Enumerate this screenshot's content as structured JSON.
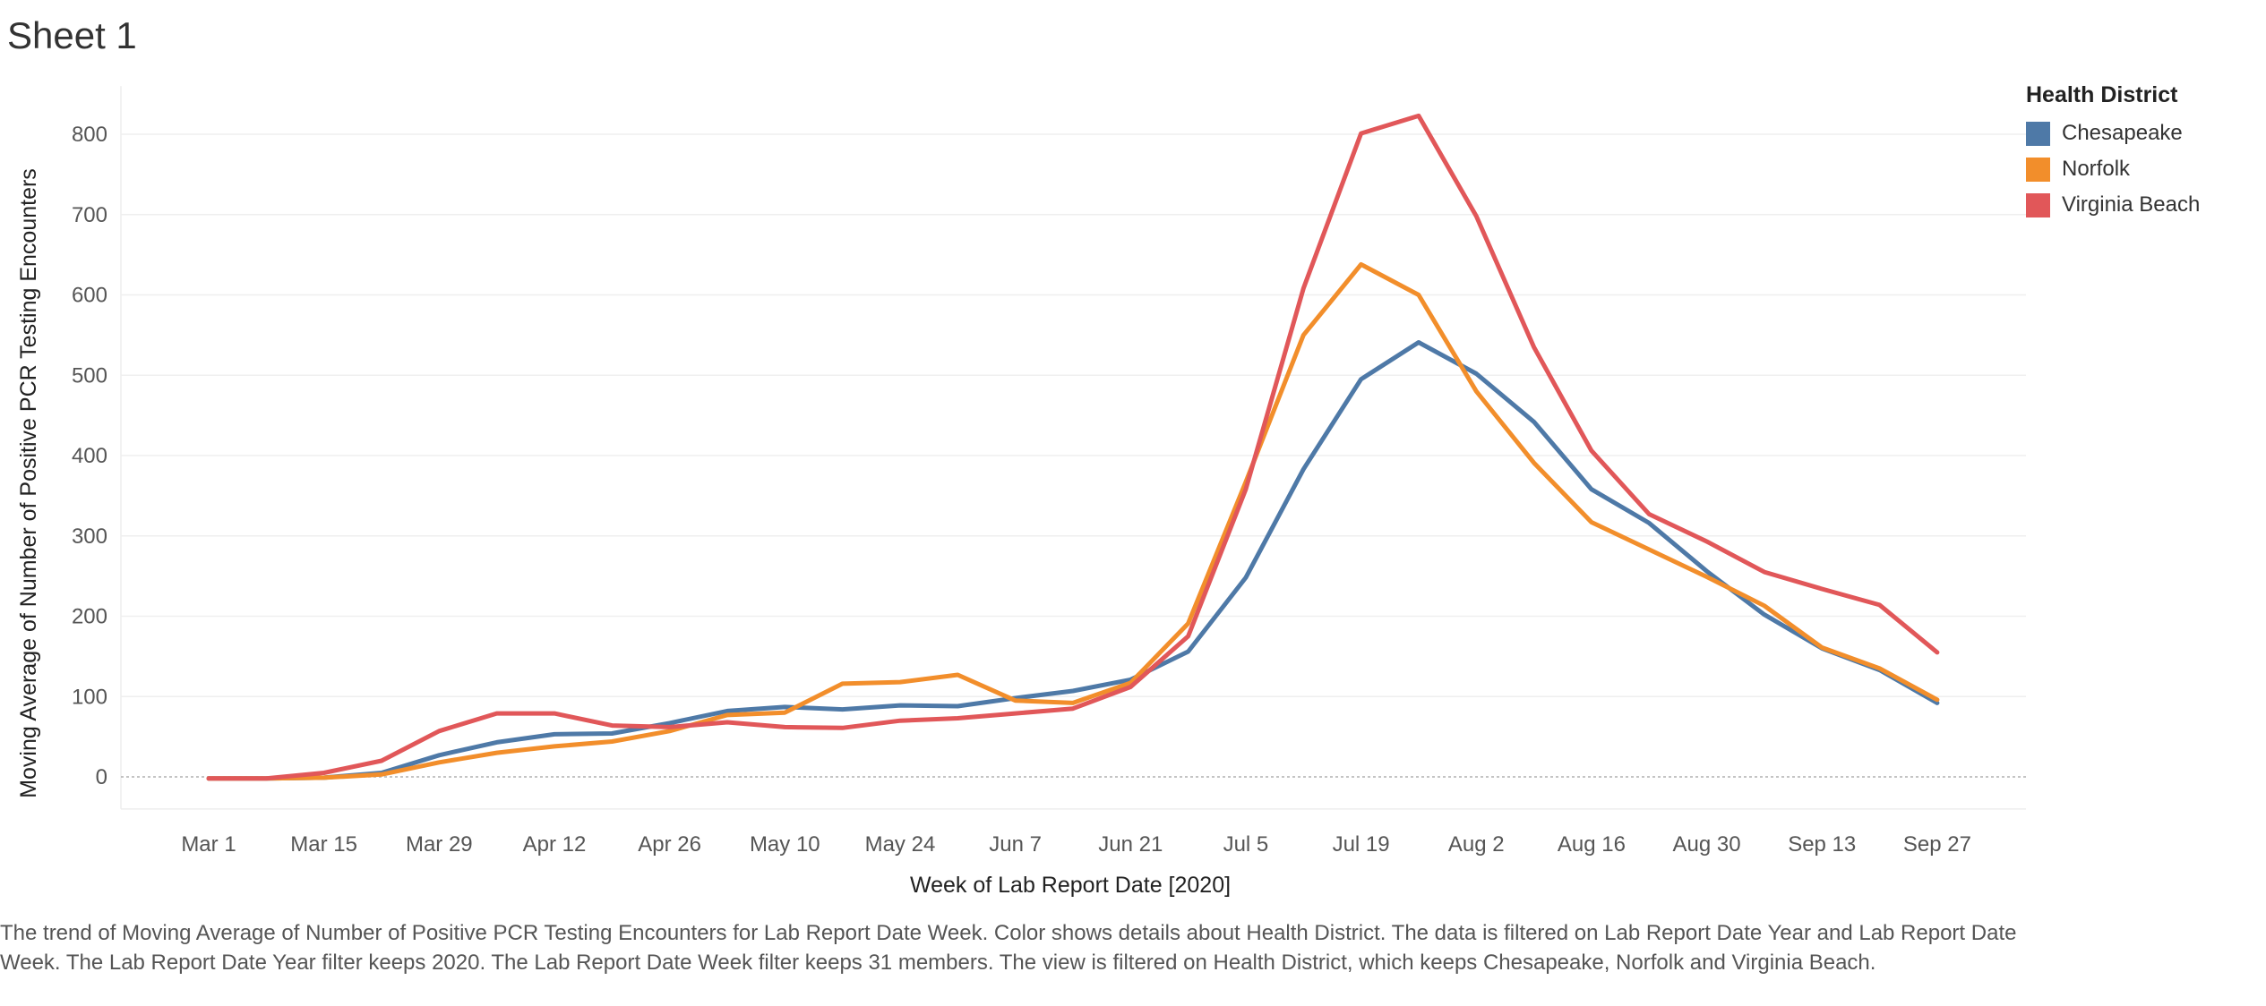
{
  "sheet_title": "Sheet 1",
  "legend": {
    "title": "Health District",
    "items": [
      {
        "label": "Chesapeake",
        "color": "#4e79a7"
      },
      {
        "label": "Norfolk",
        "color": "#f28e2b"
      },
      {
        "label": "Virginia Beach",
        "color": "#e15759"
      }
    ]
  },
  "caption": "The trend of Moving Average of Number of Positive PCR Testing Encounters for Lab Report Date Week.  Color shows details about Health District. The data is filtered on Lab Report Date Year and Lab Report Date Week. The Lab Report Date Year filter keeps 2020. The Lab Report Date Week filter keeps 31 members. The view is filtered on Health District, which keeps Chesapeake, Norfolk and Virginia Beach.",
  "chart_data": {
    "type": "line",
    "title": "",
    "xlabel": "Week of Lab Report Date [2020]",
    "ylabel": "Moving Average of Number of Positive PCR Testing Encounters",
    "x": [
      "Mar 1",
      "Mar 8",
      "Mar 15",
      "Mar 22",
      "Mar 29",
      "Apr 5",
      "Apr 12",
      "Apr 19",
      "Apr 26",
      "May 3",
      "May 10",
      "May 17",
      "May 24",
      "May 31",
      "Jun 7",
      "Jun 14",
      "Jun 21",
      "Jun 28",
      "Jul 5",
      "Jul 12",
      "Jul 19",
      "Jul 26",
      "Aug 2",
      "Aug 9",
      "Aug 16",
      "Aug 23",
      "Aug 30",
      "Sep 6",
      "Sep 13",
      "Sep 20",
      "Sep 27"
    ],
    "x_ticks": [
      "Mar 1",
      "Mar 15",
      "Mar 29",
      "Apr 12",
      "Apr 26",
      "May 10",
      "May 24",
      "Jun 7",
      "Jun 21",
      "Jul 5",
      "Jul 19",
      "Aug 2",
      "Aug 16",
      "Aug 30",
      "Sep 13",
      "Sep 27"
    ],
    "y_ticks": [
      0,
      100,
      200,
      300,
      400,
      500,
      600,
      700,
      800
    ],
    "ylim": [
      -40,
      860
    ],
    "grid": true,
    "legend_position": "top-right",
    "series": [
      {
        "name": "Chesapeake",
        "color": "#4e79a7",
        "values": [
          -2,
          -2,
          -1,
          5,
          27,
          43,
          53,
          54,
          67,
          82,
          87,
          84,
          89,
          88,
          98,
          107,
          121,
          156,
          248,
          383,
          495,
          541,
          502,
          442,
          358,
          316,
          256,
          202,
          160,
          133,
          92
        ]
      },
      {
        "name": "Norfolk",
        "color": "#f28e2b",
        "values": [
          -2,
          -2,
          -1,
          3,
          18,
          30,
          38,
          44,
          57,
          77,
          80,
          116,
          118,
          127,
          95,
          92,
          117,
          191,
          367,
          550,
          638,
          600,
          480,
          391,
          317,
          283,
          249,
          213,
          161,
          135,
          96
        ]
      },
      {
        "name": "Virginia Beach",
        "color": "#e15759",
        "values": [
          -2,
          -2,
          5,
          20,
          57,
          79,
          79,
          64,
          62,
          68,
          62,
          61,
          70,
          73,
          79,
          85,
          112,
          175,
          358,
          608,
          801,
          823,
          698,
          535,
          406,
          327,
          293,
          255,
          234,
          214,
          155
        ]
      }
    ]
  }
}
